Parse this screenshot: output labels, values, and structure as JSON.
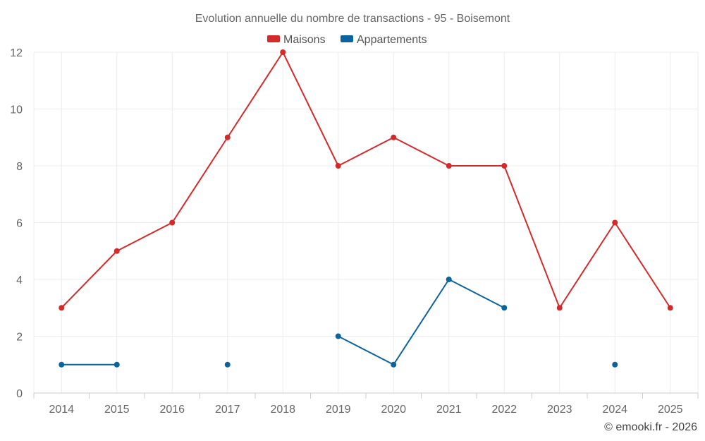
{
  "chart_data": {
    "type": "line",
    "title": "Evolution annuelle du nombre de transactions - 95 - Boisemont",
    "credit": "© emooki.fr - 2026",
    "xlabel": "",
    "ylabel": "",
    "categories": [
      "2014",
      "2015",
      "2016",
      "2017",
      "2018",
      "2019",
      "2020",
      "2021",
      "2022",
      "2023",
      "2024",
      "2025"
    ],
    "ylim": [
      0,
      12
    ],
    "yticks": [
      0,
      2,
      4,
      6,
      8,
      10,
      12
    ],
    "grid": true,
    "legend_position": "top-center",
    "series": [
      {
        "name": "Maisons",
        "color": "#d42a2a",
        "values": [
          3,
          5,
          6,
          9,
          12,
          8,
          9,
          8,
          8,
          3,
          6,
          3
        ]
      },
      {
        "name": "Appartements",
        "color": "#0b64a0",
        "values": [
          1,
          1,
          null,
          1,
          null,
          2,
          1,
          4,
          3,
          null,
          1,
          null
        ]
      }
    ]
  }
}
